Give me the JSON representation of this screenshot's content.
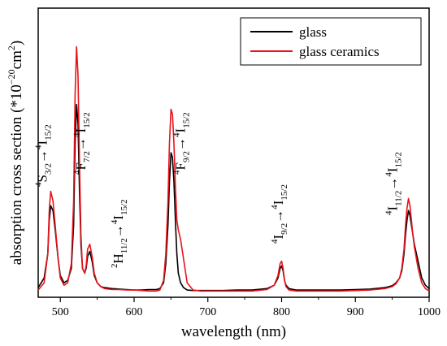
{
  "chart_data": {
    "type": "line",
    "xlabel": "wavelength (nm)",
    "ylabel": "absorption cross section (*10",
    "ylabel_exp": "−20",
    "ylabel_unit": "cm",
    "ylabel_unit_exp": "2",
    "ylabel_close": ")",
    "xlim": [
      470,
      1000
    ],
    "ylim": [
      0,
      6.0
    ],
    "x_ticks": [
      500,
      600,
      700,
      800,
      900,
      1000
    ],
    "x_tick_labels": [
      "500",
      "600",
      "700",
      "800",
      "900",
      "1000"
    ],
    "y_ticks_labeled": false,
    "grid": false,
    "legend_position": "top-right",
    "series": [
      {
        "name": "glass",
        "color": "#000000",
        "x": [
          470,
          478,
          483,
          485,
          487,
          490,
          493,
          497,
          500,
          505,
          510,
          515,
          518,
          520,
          522,
          524,
          526,
          528,
          530,
          533,
          535,
          537,
          540,
          543,
          546,
          550,
          555,
          560,
          570,
          580,
          590,
          600,
          610,
          620,
          630,
          635,
          640,
          643,
          646,
          648,
          650,
          652,
          654,
          656,
          658,
          660,
          663,
          667,
          672,
          680,
          690,
          700,
          720,
          740,
          760,
          780,
          790,
          795,
          798,
          800,
          802,
          804,
          806,
          810,
          820,
          840,
          860,
          880,
          900,
          920,
          940,
          950,
          955,
          960,
          963,
          966,
          968,
          970,
          972,
          974,
          976,
          978,
          980,
          985,
          990,
          995,
          1000
        ],
        "y": [
          0.2,
          0.4,
          0.9,
          1.6,
          1.9,
          1.8,
          1.4,
          0.8,
          0.45,
          0.3,
          0.35,
          0.6,
          1.5,
          3.2,
          4.0,
          3.6,
          2.2,
          1.1,
          0.6,
          0.5,
          0.6,
          0.85,
          0.95,
          0.75,
          0.45,
          0.3,
          0.22,
          0.2,
          0.18,
          0.17,
          0.16,
          0.15,
          0.15,
          0.16,
          0.16,
          0.18,
          0.3,
          0.7,
          1.5,
          2.4,
          3.0,
          2.9,
          2.4,
          1.6,
          0.9,
          0.5,
          0.3,
          0.2,
          0.15,
          0.14,
          0.14,
          0.14,
          0.14,
          0.15,
          0.15,
          0.18,
          0.25,
          0.4,
          0.6,
          0.65,
          0.55,
          0.35,
          0.25,
          0.18,
          0.15,
          0.15,
          0.15,
          0.15,
          0.16,
          0.17,
          0.2,
          0.24,
          0.3,
          0.4,
          0.55,
          0.9,
          1.3,
          1.6,
          1.8,
          1.7,
          1.5,
          1.3,
          1.1,
          0.75,
          0.4,
          0.25,
          0.18
        ]
      },
      {
        "name": "glass ceramics",
        "color": "#e8131a",
        "x": [
          470,
          478,
          483,
          485,
          487,
          490,
          493,
          497,
          500,
          505,
          510,
          515,
          518,
          520,
          522,
          524,
          526,
          528,
          530,
          533,
          535,
          537,
          540,
          543,
          546,
          550,
          555,
          560,
          570,
          580,
          590,
          600,
          610,
          620,
          630,
          635,
          640,
          643,
          646,
          648,
          650,
          652,
          654,
          656,
          658,
          660,
          663,
          667,
          672,
          680,
          690,
          700,
          720,
          740,
          760,
          780,
          790,
          795,
          798,
          800,
          802,
          804,
          806,
          810,
          820,
          840,
          860,
          880,
          900,
          920,
          940,
          950,
          955,
          960,
          963,
          966,
          968,
          970,
          972,
          974,
          976,
          978,
          980,
          985,
          990,
          995,
          1000
        ],
        "y": [
          0.15,
          0.3,
          0.9,
          1.8,
          2.2,
          2.0,
          1.5,
          0.8,
          0.4,
          0.25,
          0.3,
          0.7,
          2.0,
          4.2,
          5.2,
          4.6,
          2.8,
          1.3,
          0.6,
          0.5,
          0.65,
          1.0,
          1.1,
          0.85,
          0.5,
          0.3,
          0.22,
          0.18,
          0.16,
          0.16,
          0.15,
          0.15,
          0.14,
          0.13,
          0.13,
          0.15,
          0.35,
          0.9,
          2.0,
          3.2,
          3.9,
          3.8,
          3.2,
          2.3,
          1.6,
          1.4,
          1.2,
          0.8,
          0.3,
          0.15,
          0.13,
          0.13,
          0.13,
          0.13,
          0.13,
          0.16,
          0.25,
          0.45,
          0.7,
          0.75,
          0.6,
          0.35,
          0.22,
          0.15,
          0.13,
          0.13,
          0.13,
          0.13,
          0.14,
          0.15,
          0.18,
          0.22,
          0.28,
          0.4,
          0.6,
          1.0,
          1.5,
          1.85,
          2.05,
          1.9,
          1.6,
          1.3,
          1.05,
          0.6,
          0.3,
          0.18,
          0.13
        ]
      }
    ],
    "annotations": [
      {
        "id": "s32",
        "base": "4",
        "main": "S",
        "sub": "3/2",
        "arrow": "→",
        "base2": "4",
        "main2": "I",
        "sub2": "15/2",
        "x": 485
      },
      {
        "id": "f72",
        "base": "4",
        "main": "F",
        "sub": "7/2",
        "arrow": "→",
        "base2": "4",
        "main2": "I",
        "sub2": "15/2",
        "x": 537
      },
      {
        "id": "h112",
        "base": "2",
        "main": "H",
        "sub": "11/2",
        "arrow": "→",
        "base2": "4",
        "main2": "I",
        "sub2": "15/2",
        "x": 588
      },
      {
        "id": "f92",
        "base": "4",
        "main": "F",
        "sub": "9/2",
        "arrow": "→",
        "base2": "4",
        "main2": "I",
        "sub2": "15/2",
        "x": 672
      },
      {
        "id": "i92",
        "base": "4",
        "main": "I",
        "sub": "9/2",
        "arrow": "→",
        "base2": "4",
        "main2": "I",
        "sub2": "15/2",
        "x": 805
      },
      {
        "id": "i112",
        "base": "4",
        "main": "I",
        "sub": "11/2",
        "arrow": "→",
        "base2": "4",
        "main2": "I",
        "sub2": "15/2",
        "x": 960
      }
    ]
  }
}
